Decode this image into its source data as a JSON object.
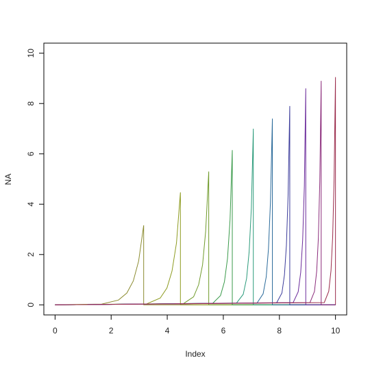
{
  "chart_data": {
    "type": "line",
    "xlabel": "Index",
    "ylabel": "NA",
    "xlim": [
      -0.4,
      10.4
    ],
    "ylim": [
      -0.4,
      10.4
    ],
    "xticks": [
      0,
      2,
      4,
      6,
      8,
      10
    ],
    "yticks": [
      0,
      2,
      4,
      6,
      8,
      10
    ],
    "series": [
      {
        "color": "#8a8a2e",
        "x": [
          0,
          1.66,
          2.26,
          2.56,
          2.79,
          2.98,
          3.16,
          3.16,
          10
        ],
        "values": [
          0,
          0.03,
          0.19,
          0.47,
          0.95,
          1.74,
          3.16,
          0,
          0
        ]
      },
      {
        "color": "#8c9a1e",
        "x": [
          0,
          3.27,
          3.75,
          3.99,
          4.17,
          4.33,
          4.47,
          4.47,
          10
        ],
        "values": [
          0,
          0.04,
          0.27,
          0.67,
          1.34,
          2.46,
          4.47,
          0,
          0
        ]
      },
      {
        "color": "#6f9a2a",
        "x": [
          0,
          4.58,
          4.94,
          5.12,
          5.26,
          5.37,
          5.48,
          5.48,
          10
        ],
        "values": [
          0,
          0.05,
          0.32,
          0.8,
          1.59,
          2.92,
          5.3,
          0,
          0
        ]
      },
      {
        "color": "#3a9a4a",
        "x": [
          0,
          5.62,
          5.9,
          6.04,
          6.15,
          6.24,
          6.32,
          6.32,
          10
        ],
        "values": [
          0,
          0.06,
          0.37,
          0.92,
          1.85,
          3.38,
          6.15,
          0,
          0
        ]
      },
      {
        "color": "#2a9a7a",
        "x": [
          0,
          6.47,
          6.71,
          6.83,
          6.92,
          7.0,
          7.07,
          7.07,
          10
        ],
        "values": [
          0,
          0.07,
          0.42,
          1.05,
          2.1,
          3.85,
          7.0,
          0,
          0
        ]
      },
      {
        "color": "#2a6a9a",
        "x": [
          0,
          7.2,
          7.42,
          7.53,
          7.61,
          7.68,
          7.75,
          7.75,
          10
        ],
        "values": [
          0,
          0.07,
          0.44,
          1.11,
          2.22,
          4.07,
          7.4,
          0,
          0
        ]
      },
      {
        "color": "#3a3a9a",
        "x": [
          0,
          7.9,
          8.09,
          8.18,
          8.25,
          8.31,
          8.37,
          8.37,
          10
        ],
        "values": [
          0,
          0.08,
          0.47,
          1.19,
          2.37,
          4.35,
          7.9,
          0,
          0
        ]
      },
      {
        "color": "#6a2a9a",
        "x": [
          0,
          8.49,
          8.67,
          8.76,
          8.83,
          8.89,
          8.94,
          8.94,
          10
        ],
        "values": [
          0,
          0.09,
          0.52,
          1.29,
          2.58,
          4.73,
          8.6,
          0,
          0
        ]
      },
      {
        "color": "#8a2a7a",
        "x": [
          0,
          9.09,
          9.25,
          9.33,
          9.39,
          9.44,
          9.49,
          9.49,
          10
        ],
        "values": [
          0,
          0.09,
          0.53,
          1.34,
          2.67,
          4.9,
          8.9,
          0,
          0
        ]
      },
      {
        "color": "#9a2a4a",
        "x": [
          0,
          9.6,
          9.76,
          9.84,
          9.9,
          9.95,
          10,
          10
        ],
        "values": [
          0,
          0.09,
          0.54,
          1.36,
          2.72,
          4.98,
          9.05,
          0
        ]
      }
    ]
  }
}
